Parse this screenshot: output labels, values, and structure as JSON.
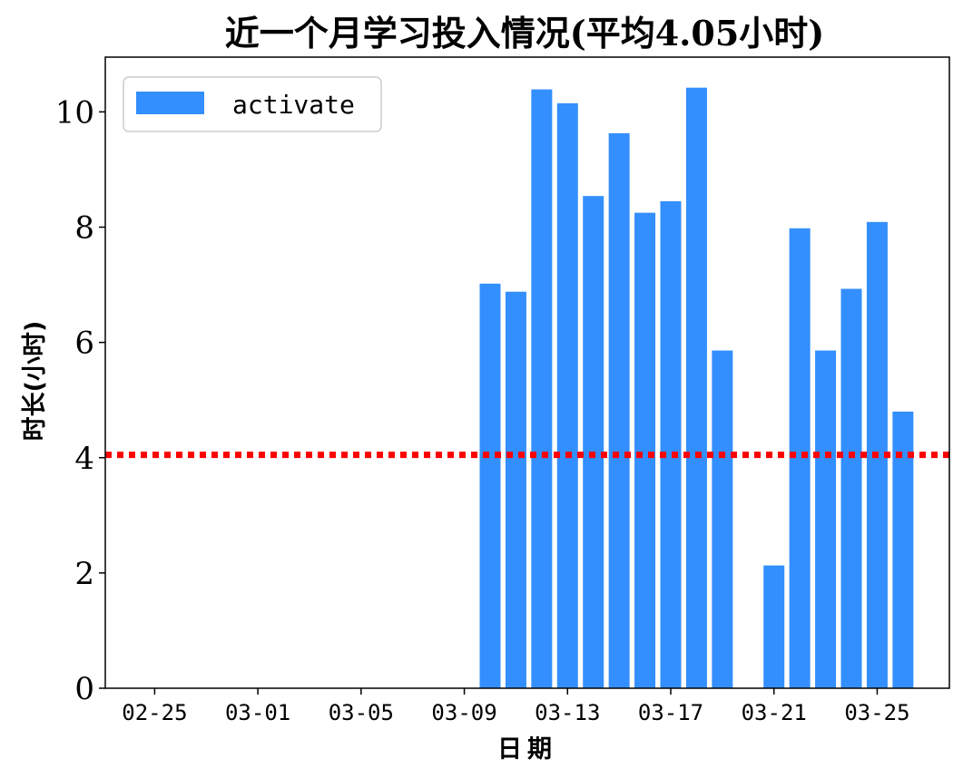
{
  "chart_data": {
    "type": "bar",
    "title": "近一个月学习投入情况(平均4.05小时)",
    "xlabel": "日期",
    "ylabel": "时长(小时)",
    "categories": [
      "02-25",
      "02-26",
      "02-27",
      "02-28",
      "03-01",
      "03-02",
      "03-03",
      "03-04",
      "03-05",
      "03-06",
      "03-07",
      "03-08",
      "03-09",
      "03-10",
      "03-11",
      "03-12",
      "03-13",
      "03-14",
      "03-15",
      "03-16",
      "03-17",
      "03-18",
      "03-19",
      "03-20",
      "03-21",
      "03-22",
      "03-23",
      "03-24",
      "03-25",
      "03-26"
    ],
    "series": [
      {
        "name": "activate",
        "color": "#338ffd",
        "values": [
          0,
          0,
          0,
          0,
          0,
          0,
          0,
          0,
          0,
          0,
          0,
          0,
          0,
          7.02,
          6.88,
          10.39,
          10.15,
          8.54,
          9.63,
          8.25,
          8.45,
          10.42,
          5.86,
          0,
          2.13,
          7.98,
          5.86,
          6.93,
          8.09,
          4.8
        ]
      }
    ],
    "average": {
      "value": 4.05,
      "color": "#ff0000",
      "style": "dotted"
    },
    "xticks": [
      "02-25",
      "03-01",
      "03-05",
      "03-09",
      "03-13",
      "03-17",
      "03-21",
      "03-25"
    ],
    "yticks": [
      "0",
      "2",
      "4",
      "6",
      "8",
      "10"
    ],
    "ylim": [
      0,
      10.95
    ],
    "grid": false,
    "legend_position": "top-left"
  }
}
